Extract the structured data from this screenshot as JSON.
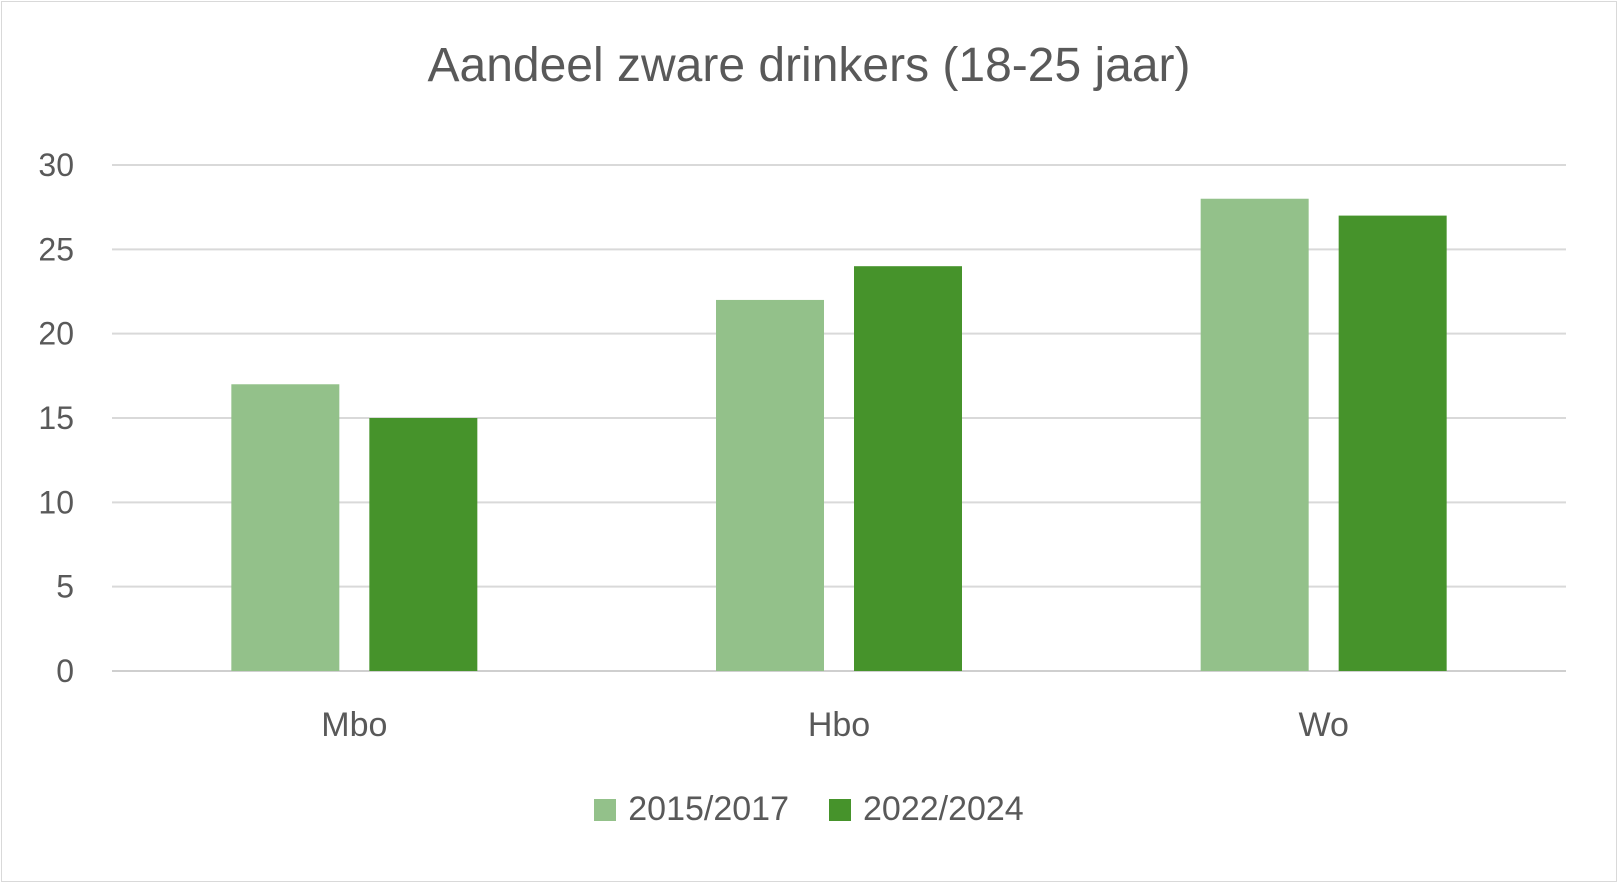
{
  "chart_data": {
    "type": "bar",
    "title": "Aandeel zware drinkers (18-25 jaar)",
    "categories": [
      "Mbo",
      "Hbo",
      "Wo"
    ],
    "series": [
      {
        "name": "2015/2017",
        "values": [
          17,
          22,
          28
        ],
        "color": "#93c18a"
      },
      {
        "name": "2022/2024",
        "values": [
          15,
          24,
          27
        ],
        "color": "#46932b"
      }
    ],
    "ylim": [
      0,
      30
    ],
    "yticks": [
      "0",
      "5",
      "10",
      "15",
      "20",
      "25",
      "30"
    ],
    "grid": true,
    "legend": "bottom"
  }
}
